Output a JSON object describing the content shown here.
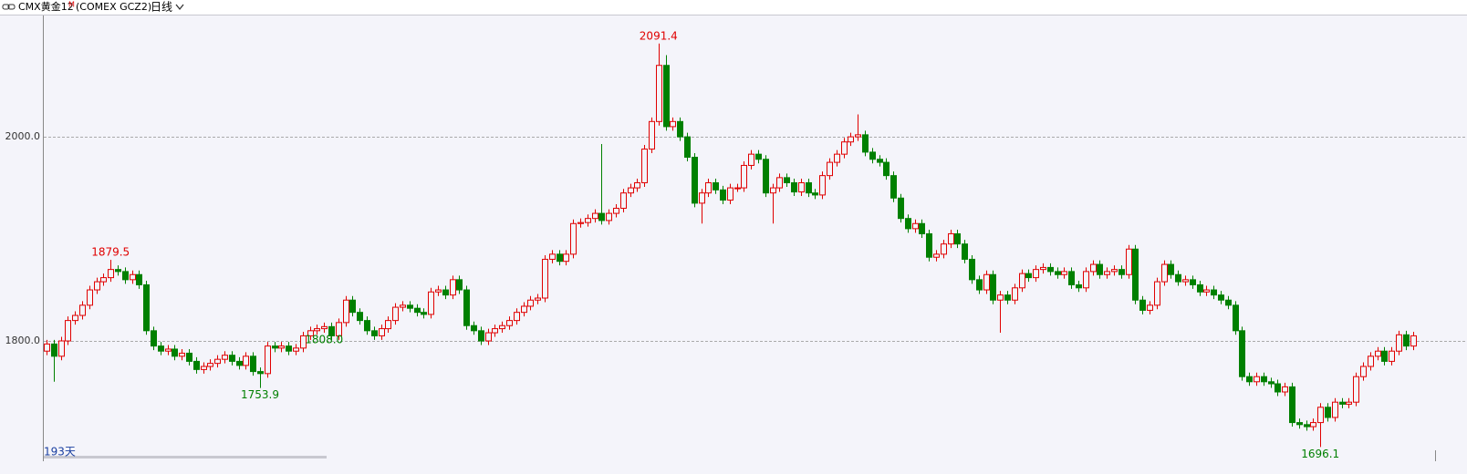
{
  "header": {
    "symbol": "CMX黄金12",
    "badge": "M",
    "code": "(COMEX GCZ2)",
    "period": "日线"
  },
  "footer": {
    "count": "193天"
  },
  "chart_data": {
    "type": "candlestick",
    "up_color": "#e00000",
    "down_color": "#008000",
    "grid": true,
    "ylim": [
      1683,
      2118
    ],
    "yticks": [
      {
        "value": 1800,
        "label": "1800.0"
      },
      {
        "value": 2000,
        "label": "2000.0"
      }
    ],
    "high_labels": [
      1879.5,
      2091.4
    ],
    "low_labels": [
      1753.9,
      {
        "value": 1808,
        "label": "1808.0"
      },
      1696.1
    ],
    "open": [
      1790,
      1797,
      1785,
      1800,
      1820,
      1825,
      1835,
      1850,
      1858,
      1862,
      1870,
      1868,
      1860,
      1865,
      1855,
      1810,
      1795,
      1790,
      1792,
      1785,
      1788,
      1780,
      1772,
      1775,
      1778,
      1782,
      1786,
      1780,
      1776,
      1785,
      1770,
      1768,
      1795,
      1793,
      1795,
      1790,
      1793,
      1805,
      1810,
      1812,
      1814,
      1805,
      1818,
      1840,
      1828,
      1820,
      1810,
      1805,
      1812,
      1820,
      1833,
      1835,
      1832,
      1828,
      1826,
      1848,
      1850,
      1845,
      1860,
      1850,
      1815,
      1810,
      1800,
      1808,
      1812,
      1815,
      1820,
      1828,
      1834,
      1840,
      1842,
      1880,
      1885,
      1878,
      1885,
      1915,
      1916,
      1920,
      1925,
      1918,
      1925,
      1930,
      1945,
      1950,
      1955,
      1988,
      2015,
      2070,
      2010,
      2015,
      2000,
      1980,
      1935,
      1945,
      1955,
      1948,
      1938,
      1950,
      1950,
      1972,
      1983,
      1978,
      1945,
      1950,
      1960,
      1955,
      1946,
      1955,
      1945,
      1943,
      1962,
      1975,
      1983,
      1995,
      2000,
      2002,
      1985,
      1978,
      1975,
      1962,
      1940,
      1920,
      1910,
      1915,
      1905,
      1882,
      1885,
      1895,
      1905,
      1895,
      1880,
      1860,
      1850,
      1865,
      1840,
      1845,
      1840,
      1852,
      1866,
      1862,
      1870,
      1872,
      1868,
      1865,
      1868,
      1855,
      1852,
      1868,
      1875,
      1865,
      1868,
      1870,
      1865,
      1890,
      1840,
      1830,
      1835,
      1858,
      1875,
      1865,
      1858,
      1860,
      1855,
      1848,
      1850,
      1845,
      1840,
      1835,
      1810,
      1765,
      1760,
      1765,
      1760,
      1758,
      1750,
      1755,
      1720,
      1718,
      1716,
      1720,
      1735,
      1725,
      1740,
      1738,
      1740,
      1765,
      1775,
      1785,
      1790,
      1780,
      1790,
      1806,
      1795
    ],
    "high": [
      1801,
      1801,
      1804,
      1824,
      1829,
      1839,
      1854,
      1862,
      1866,
      1879.5,
      1874,
      1872,
      1869,
      1869,
      1859,
      1814,
      1799,
      1796,
      1796,
      1792,
      1792,
      1784,
      1779,
      1782,
      1786,
      1790,
      1790,
      1784,
      1789,
      1789,
      1774,
      1799,
      1799,
      1799,
      1799,
      1797,
      1809,
      1814,
      1816,
      1818,
      1818,
      1822,
      1844,
      1844,
      1832,
      1824,
      1814,
      1816,
      1824,
      1837,
      1839,
      1839,
      1836,
      1832,
      1852,
      1854,
      1854,
      1864,
      1864,
      1854,
      1819,
      1814,
      1812,
      1816,
      1819,
      1824,
      1832,
      1838,
      1844,
      1846,
      1884,
      1889,
      1889,
      1889,
      1919,
      1920,
      1924,
      1929,
      1993,
      1929,
      1934,
      1949,
      1954,
      1959,
      1992,
      2019,
      2091.4,
      2080,
      2019,
      2019,
      2004,
      1984,
      1949,
      1959,
      1959,
      1952,
      1954,
      1954,
      1976,
      1987,
      1987,
      1982,
      1954,
      1964,
      1964,
      1959,
      1959,
      1959,
      1949,
      1966,
      1979,
      1987,
      1999,
      2004,
      2022,
      2006,
      1989,
      1982,
      1979,
      1966,
      1944,
      1924,
      1919,
      1919,
      1909,
      1889,
      1899,
      1909,
      1909,
      1899,
      1884,
      1864,
      1869,
      1869,
      1849,
      1849,
      1856,
      1870,
      1870,
      1874,
      1876,
      1876,
      1872,
      1872,
      1872,
      1859,
      1872,
      1879,
      1879,
      1872,
      1874,
      1874,
      1894,
      1894,
      1844,
      1839,
      1862,
      1879,
      1879,
      1869,
      1864,
      1864,
      1859,
      1854,
      1854,
      1849,
      1844,
      1839,
      1814,
      1769,
      1769,
      1769,
      1764,
      1762,
      1759,
      1759,
      1724,
      1722,
      1724,
      1739,
      1739,
      1744,
      1744,
      1744,
      1769,
      1779,
      1789,
      1794,
      1794,
      1794,
      1810,
      1810,
      1809
    ],
    "low": [
      1786,
      1760,
      1781,
      1796,
      1816,
      1821,
      1831,
      1846,
      1854,
      1858,
      1864,
      1856,
      1856,
      1851,
      1806,
      1791,
      1786,
      1786,
      1781,
      1781,
      1776,
      1768,
      1768,
      1771,
      1774,
      1778,
      1776,
      1772,
      1772,
      1766,
      1753.9,
      1764,
      1789,
      1789,
      1786,
      1786,
      1789,
      1801,
      1806,
      1808,
      1801,
      1801,
      1814,
      1824,
      1816,
      1806,
      1801,
      1801,
      1808,
      1816,
      1829,
      1828,
      1824,
      1822,
      1822,
      1844,
      1841,
      1841,
      1846,
      1811,
      1806,
      1796,
      1796,
      1804,
      1808,
      1811,
      1816,
      1824,
      1830,
      1836,
      1838,
      1876,
      1874,
      1874,
      1881,
      1911,
      1912,
      1916,
      1914,
      1914,
      1921,
      1926,
      1941,
      1946,
      1951,
      1984,
      2011,
      2006,
      2006,
      1996,
      1976,
      1931,
      1915,
      1941,
      1944,
      1934,
      1934,
      1946,
      1946,
      1968,
      1974,
      1941,
      1915,
      1946,
      1951,
      1942,
      1942,
      1941,
      1939,
      1939,
      1958,
      1971,
      1979,
      1991,
      1996,
      1981,
      1974,
      1971,
      1958,
      1936,
      1916,
      1906,
      1906,
      1901,
      1878,
      1878,
      1881,
      1891,
      1891,
      1876,
      1856,
      1846,
      1846,
      1836,
      1808,
      1836,
      1836,
      1848,
      1858,
      1858,
      1866,
      1864,
      1861,
      1861,
      1851,
      1848,
      1848,
      1864,
      1861,
      1861,
      1864,
      1861,
      1861,
      1836,
      1826,
      1826,
      1831,
      1854,
      1861,
      1854,
      1854,
      1851,
      1844,
      1844,
      1841,
      1836,
      1831,
      1806,
      1761,
      1756,
      1756,
      1756,
      1754,
      1746,
      1746,
      1716,
      1714,
      1712,
      1712,
      1696.1,
      1721,
      1721,
      1734,
      1734,
      1736,
      1761,
      1771,
      1781,
      1776,
      1776,
      1786,
      1791,
      1791
    ],
    "close": [
      1797,
      1785,
      1800,
      1820,
      1825,
      1835,
      1850,
      1858,
      1862,
      1870,
      1868,
      1860,
      1865,
      1855,
      1810,
      1795,
      1790,
      1792,
      1785,
      1788,
      1780,
      1772,
      1775,
      1778,
      1782,
      1786,
      1780,
      1776,
      1785,
      1770,
      1768,
      1795,
      1793,
      1795,
      1790,
      1793,
      1805,
      1810,
      1812,
      1814,
      1805,
      1818,
      1840,
      1828,
      1820,
      1810,
      1805,
      1812,
      1820,
      1833,
      1835,
      1832,
      1828,
      1826,
      1848,
      1850,
      1845,
      1860,
      1850,
      1815,
      1810,
      1800,
      1808,
      1812,
      1815,
      1820,
      1828,
      1834,
      1840,
      1842,
      1880,
      1885,
      1878,
      1885,
      1915,
      1916,
      1920,
      1925,
      1918,
      1925,
      1930,
      1945,
      1950,
      1955,
      1988,
      2015,
      2070,
      2010,
      2015,
      2000,
      1980,
      1935,
      1945,
      1955,
      1948,
      1938,
      1950,
      1950,
      1972,
      1983,
      1978,
      1945,
      1950,
      1960,
      1955,
      1946,
      1955,
      1945,
      1943,
      1962,
      1975,
      1983,
      1995,
      2000,
      2002,
      1985,
      1978,
      1975,
      1962,
      1940,
      1920,
      1910,
      1915,
      1905,
      1882,
      1885,
      1895,
      1905,
      1895,
      1880,
      1860,
      1850,
      1865,
      1840,
      1845,
      1840,
      1852,
      1866,
      1862,
      1870,
      1872,
      1868,
      1865,
      1868,
      1855,
      1852,
      1868,
      1875,
      1865,
      1868,
      1870,
      1865,
      1890,
      1840,
      1830,
      1835,
      1858,
      1875,
      1865,
      1858,
      1860,
      1855,
      1848,
      1850,
      1845,
      1840,
      1835,
      1810,
      1765,
      1760,
      1765,
      1760,
      1758,
      1750,
      1755,
      1720,
      1718,
      1716,
      1720,
      1735,
      1725,
      1740,
      1738,
      1740,
      1765,
      1775,
      1785,
      1790,
      1780,
      1790,
      1806,
      1795,
      1805
    ]
  }
}
